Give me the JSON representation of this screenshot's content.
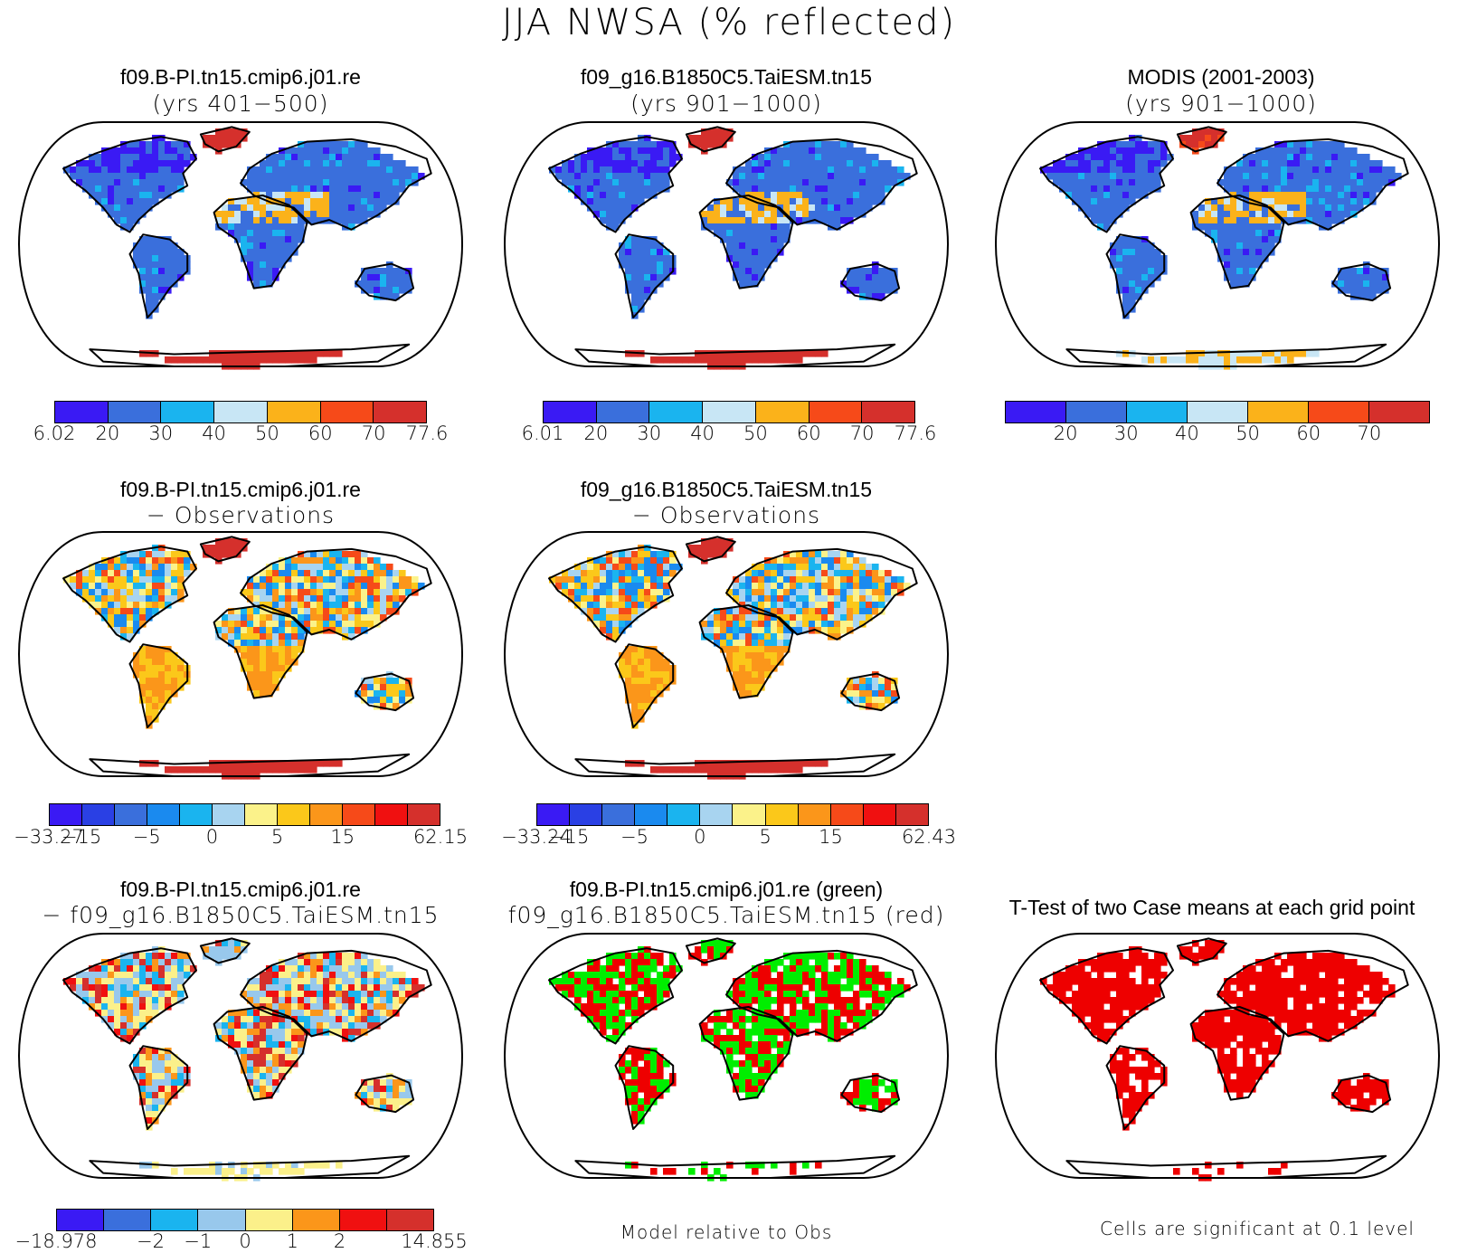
{
  "figure": {
    "title": "JJA NWSA (% reflected)"
  },
  "palettes": {
    "abs7": [
      "#3a1af4",
      "#3a6fdc",
      "#1ab4ef",
      "#c8e6f5",
      "#fbb21a",
      "#f64a19",
      "#d5302c"
    ],
    "diff12": [
      "#3a1af4",
      "#2a40e4",
      "#3a6fdc",
      "#1a8aef",
      "#1ab4ef",
      "#a8d4f0",
      "#fbf28a",
      "#fbc81a",
      "#fb961a",
      "#f64a19",
      "#f01010",
      "#d5302c"
    ],
    "diff8": [
      "#3a1af4",
      "#3a6fdc",
      "#1ab4ef",
      "#98c8ec",
      "#fbf08a",
      "#fb961a",
      "#f01010",
      "#d5302c"
    ]
  },
  "panels": [
    {
      "id": "case1",
      "title_line1": "f09.B-PI.tn15.cmip6.j01.re",
      "title_line2": "(yrs 401−500)",
      "map_style": "abs-case",
      "colorbar": {
        "palette": "abs7",
        "labels": [
          "6.02",
          "20",
          "30",
          "40",
          "50",
          "60",
          "70",
          "77.6"
        ],
        "label_mode": "edges"
      }
    },
    {
      "id": "case2",
      "title_line1": "f09_g16.B1850C5.TaiESM.tn15",
      "title_line2": "(yrs 901−1000)",
      "map_style": "abs-case",
      "colorbar": {
        "palette": "abs7",
        "labels": [
          "6.01",
          "20",
          "30",
          "40",
          "50",
          "60",
          "70",
          "77.6"
        ],
        "label_mode": "edges"
      }
    },
    {
      "id": "obs",
      "title_line1": "MODIS (2001-2003)",
      "title_line2": "(yrs 901−1000)",
      "map_style": "abs-obs",
      "colorbar": {
        "palette": "abs7",
        "labels": [
          "",
          "20",
          "30",
          "40",
          "50",
          "60",
          "70",
          ""
        ],
        "label_mode": "edges"
      }
    },
    {
      "id": "diff1",
      "title_line1": "f09.B-PI.tn15.cmip6.j01.re",
      "title_line2": "− Observations",
      "map_style": "diff-obs",
      "colorbar": {
        "palette": "diff12",
        "labels": [
          "−33.27",
          "−15",
          "",
          "−5",
          "",
          "0",
          "",
          "5",
          "",
          "15",
          "",
          "",
          "62.15"
        ],
        "label_mode": "edges"
      }
    },
    {
      "id": "diff2",
      "title_line1": "f09_g16.B1850C5.TaiESM.tn15",
      "title_line2": "− Observations",
      "map_style": "diff-obs",
      "colorbar": {
        "palette": "diff12",
        "labels": [
          "−33.24",
          "−15",
          "",
          "−5",
          "",
          "0",
          "",
          "5",
          "",
          "15",
          "",
          "",
          "62.43"
        ],
        "label_mode": "edges"
      }
    },
    {
      "id": "casediff",
      "title_line1": "f09.B-PI.tn15.cmip6.j01.re",
      "title_line2": "− f09_g16.B1850C5.TaiESM.tn15",
      "map_style": "diff-case",
      "colorbar": {
        "palette": "diff8",
        "labels": [
          "−18.978",
          "",
          "−2",
          "−1",
          "0",
          "1",
          "2",
          "",
          "14.855"
        ],
        "label_mode": "edges"
      }
    },
    {
      "id": "compare",
      "title_line1": "f09.B-PI.tn15.cmip6.j01.re (green)",
      "title_line2": "f09_g16.B1850C5.TaiESM.tn15 (red)",
      "map_style": "green-red",
      "note": "Model relative to Obs"
    },
    {
      "id": "ttest",
      "title_line1": "T-Test of two Case means at each grid point",
      "title_line2": "",
      "map_style": "ttest",
      "note": "Cells are significant at 0.1 level"
    }
  ],
  "chart_data": [
    {
      "type": "heatmap",
      "title": "f09.B-PI.tn15.cmip6.j01.re (yrs 401−500)",
      "colorbar_ticks": [
        6.02,
        20,
        30,
        40,
        50,
        60,
        70,
        77.6
      ]
    },
    {
      "type": "heatmap",
      "title": "f09_g16.B1850C5.TaiESM.tn15 (yrs 901−1000)",
      "colorbar_ticks": [
        6.01,
        20,
        30,
        40,
        50,
        60,
        70,
        77.6
      ]
    },
    {
      "type": "heatmap",
      "title": "MODIS (2001-2003) (yrs 901−1000)",
      "colorbar_ticks": [
        20,
        30,
        40,
        50,
        60,
        70
      ]
    },
    {
      "type": "heatmap",
      "title": "f09.B-PI.tn15.cmip6.j01.re − Observations",
      "colorbar_ticks": [
        -33.27,
        -15,
        -5,
        0,
        5,
        15,
        62.15
      ]
    },
    {
      "type": "heatmap",
      "title": "f09_g16.B1850C5.TaiESM.tn15 − Observations",
      "colorbar_ticks": [
        -33.24,
        -15,
        -5,
        0,
        5,
        15,
        62.43
      ]
    },
    {
      "type": "heatmap",
      "title": "f09.B-PI.tn15.cmip6.j01.re − f09_g16.B1850C5.TaiESM.tn15",
      "colorbar_ticks": [
        -18.978,
        -2,
        -1,
        0,
        1,
        2,
        14.855
      ]
    },
    {
      "type": "heatmap",
      "title": "f09.B-PI.tn15.cmip6.j01.re (green) f09_g16.B1850C5.TaiESM.tn15 (red)",
      "series": [
        {
          "name": "green"
        },
        {
          "name": "red"
        }
      ]
    },
    {
      "type": "heatmap",
      "title": "T-Test of two Case means at each grid point"
    }
  ]
}
